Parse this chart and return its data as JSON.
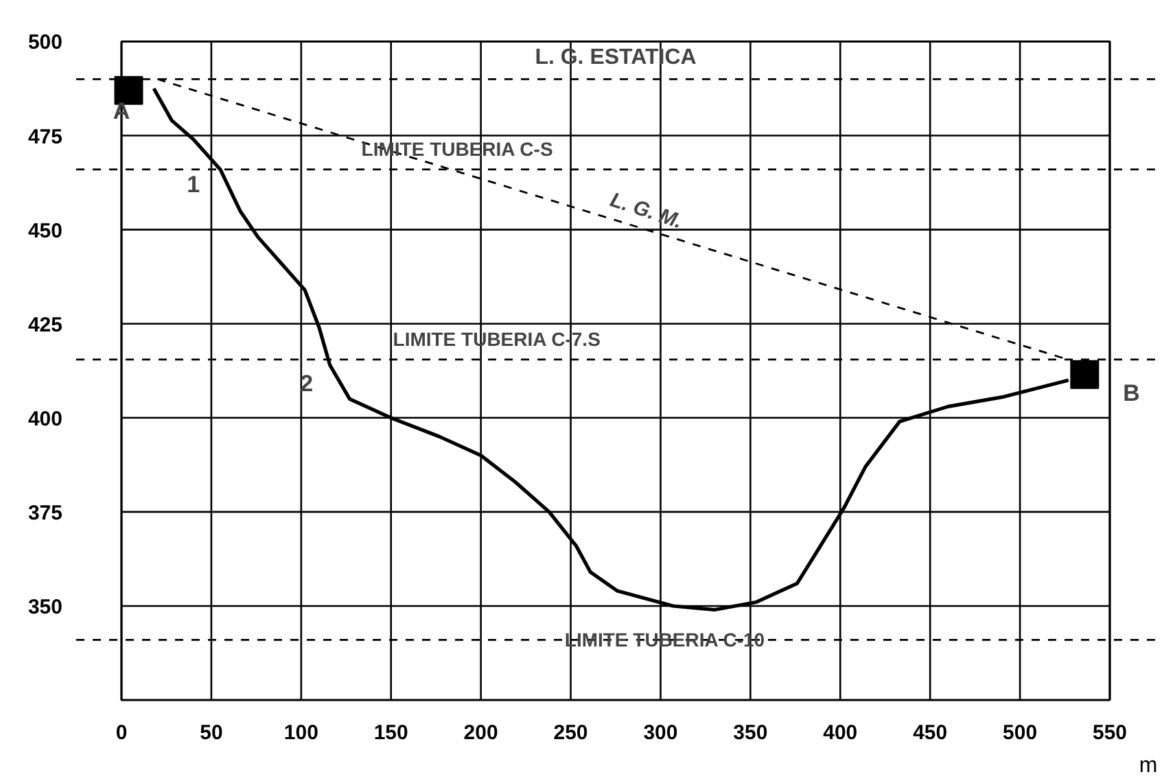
{
  "chart_data": {
    "type": "line",
    "xlabel": "m",
    "xlim": [
      0,
      550
    ],
    "xticks": [
      0,
      50,
      100,
      150,
      200,
      250,
      300,
      350,
      400,
      450,
      500,
      550
    ],
    "ylim": [
      325,
      500
    ],
    "yticks": [
      350,
      375,
      400,
      425,
      450,
      475,
      500
    ],
    "grid": true,
    "series": [
      {
        "color": "#000000",
        "line_style": "solid",
        "x": [
          18,
          28,
          40,
          55,
          66,
          76,
          89,
          102,
          110,
          116,
          127,
          150,
          177,
          200,
          219,
          238,
          253,
          261,
          276,
          307,
          330,
          353,
          376,
          389,
          402,
          414,
          433,
          460,
          490,
          527
        ],
        "values": [
          487.5,
          479,
          474,
          466,
          455,
          448,
          441,
          434,
          424,
          414,
          405,
          400,
          395,
          390,
          383,
          375,
          366,
          359,
          354,
          350,
          349,
          351,
          356,
          366,
          376,
          387,
          399,
          403,
          405.5,
          410
        ]
      },
      {
        "color": "#000000",
        "line_style": "dashed",
        "x": [
          20,
          530
        ],
        "values": [
          490,
          415
        ]
      },
      {
        "type": "scatter",
        "color": "#000000",
        "marker": "square",
        "x": [
          4,
          536
        ],
        "values": [
          487,
          411.5
        ]
      }
    ],
    "ref_lines": [
      {
        "axis": "y",
        "value": 490,
        "label": "L. G. ESTATICA",
        "line_style": "dashed"
      },
      {
        "axis": "y",
        "value": 466,
        "label": "LIMITE TUBERIA C-S",
        "line_style": "dashed"
      },
      {
        "axis": "y",
        "value": 415.5,
        "label": "LIMITE TUBERIA C-7.S",
        "line_style": "dashed"
      },
      {
        "axis": "y",
        "value": 341,
        "label": "LIMITE TUBERIA C-10",
        "line_style": "dashed"
      }
    ],
    "annotations": [
      "A",
      "1",
      "2",
      "B",
      {
        "text": "L. G. M.",
        "x": 290,
        "y": 452
      }
    ]
  }
}
